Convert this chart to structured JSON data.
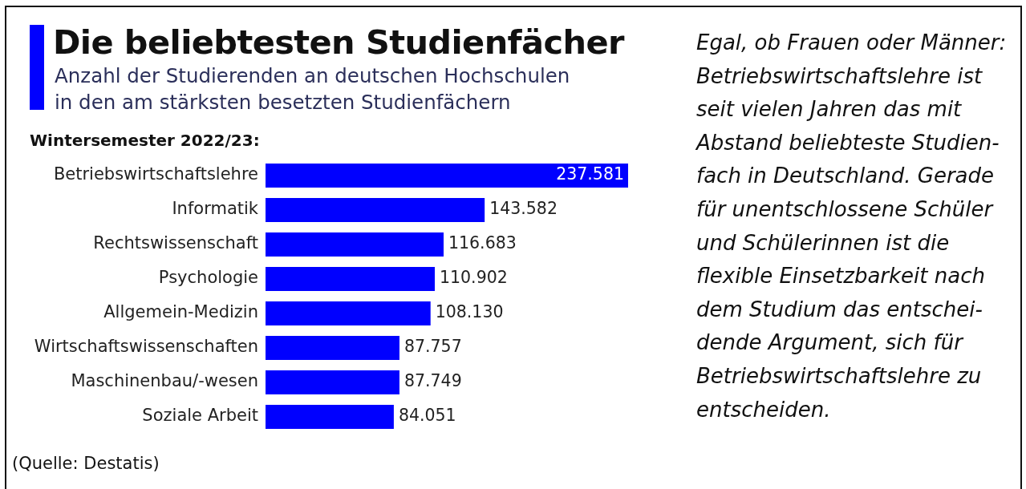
{
  "chart_data": {
    "type": "bar",
    "orientation": "horizontal",
    "title": "Die beliebtesten Studienfächer",
    "subtitle": "Anzahl der Studierenden an deutschen Hochschulen\nin den am stärksten besetzten Studienfächern",
    "categories": [
      "Betriebswirtschaftslehre",
      "Informatik",
      "Rechtswissenschaft",
      "Psychologie",
      "Allgemein-Medizin",
      "Wirtschaftswissenschaften",
      "Maschinenbau/-wesen",
      "Soziale Arbeit"
    ],
    "values": [
      237581,
      143582,
      116683,
      110902,
      108130,
      87757,
      87749,
      84051
    ],
    "value_labels": [
      "237.581",
      "143.582",
      "116.683",
      "110.902",
      "108.130",
      "87.757",
      "87.749",
      "84.051"
    ],
    "color": "#0000ff",
    "tick_labels": "y",
    "annotations": [
      "Wintersemester 2022/23:",
      "(Quelle: Destatis)",
      "Egal, ob Frauen oder Männer:\nBetriebswirtschaftslehre ist\nseit vielen Jahren das mit\nAbstand beliebteste Studien-\nfach in Deutschland. Gerade\nfür unentschlossene Schüler\nund Schülerinnen ist die\nflexible Einsetzbarkeit nach\ndem Studium das entschei-\ndende Argument, sich für\nBetriebswirtschaftslehre zu\nentscheiden."
    ]
  }
}
